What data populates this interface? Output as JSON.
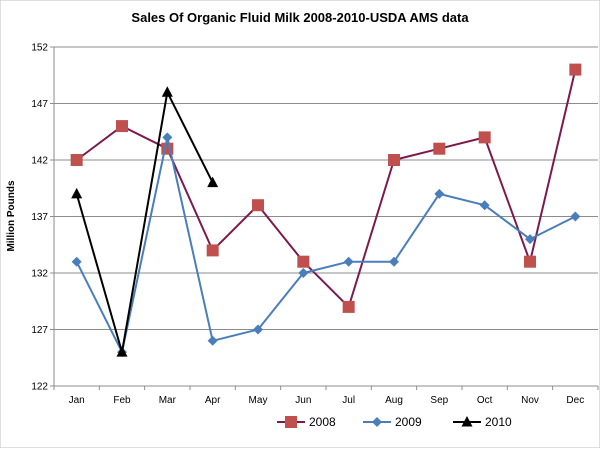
{
  "chart_data": {
    "type": "line",
    "title": "Sales Of Organic Fluid Milk 2008-2010-USDA AMS data",
    "xlabel": "",
    "ylabel": "Million Pounds",
    "categories": [
      "Jan",
      "Feb",
      "Mar",
      "Apr",
      "May",
      "Jun",
      "Jul",
      "Aug",
      "Sep",
      "Oct",
      "Nov",
      "Dec"
    ],
    "ylim": [
      122,
      152
    ],
    "yticks": [
      122,
      127,
      132,
      137,
      142,
      147,
      152
    ],
    "grid": "horizontal",
    "legend_position": "bottom",
    "series": [
      {
        "name": "2008",
        "color": "#7b1a4f",
        "marker_color": "#c0504d",
        "marker": "square",
        "values": [
          142,
          145,
          143,
          134,
          138,
          133,
          129,
          142,
          143,
          144,
          133,
          150
        ]
      },
      {
        "name": "2009",
        "color": "#4a7ebb",
        "marker_color": "#4a7ebb",
        "marker": "diamond",
        "values": [
          133,
          125,
          144,
          126,
          127,
          132,
          133,
          133,
          139,
          138,
          135,
          137
        ]
      },
      {
        "name": "2010",
        "color": "#000000",
        "marker_color": "#000000",
        "marker": "triangle",
        "values": [
          139,
          125,
          148,
          140,
          null,
          null,
          null,
          null,
          null,
          null,
          null,
          null
        ]
      }
    ]
  }
}
